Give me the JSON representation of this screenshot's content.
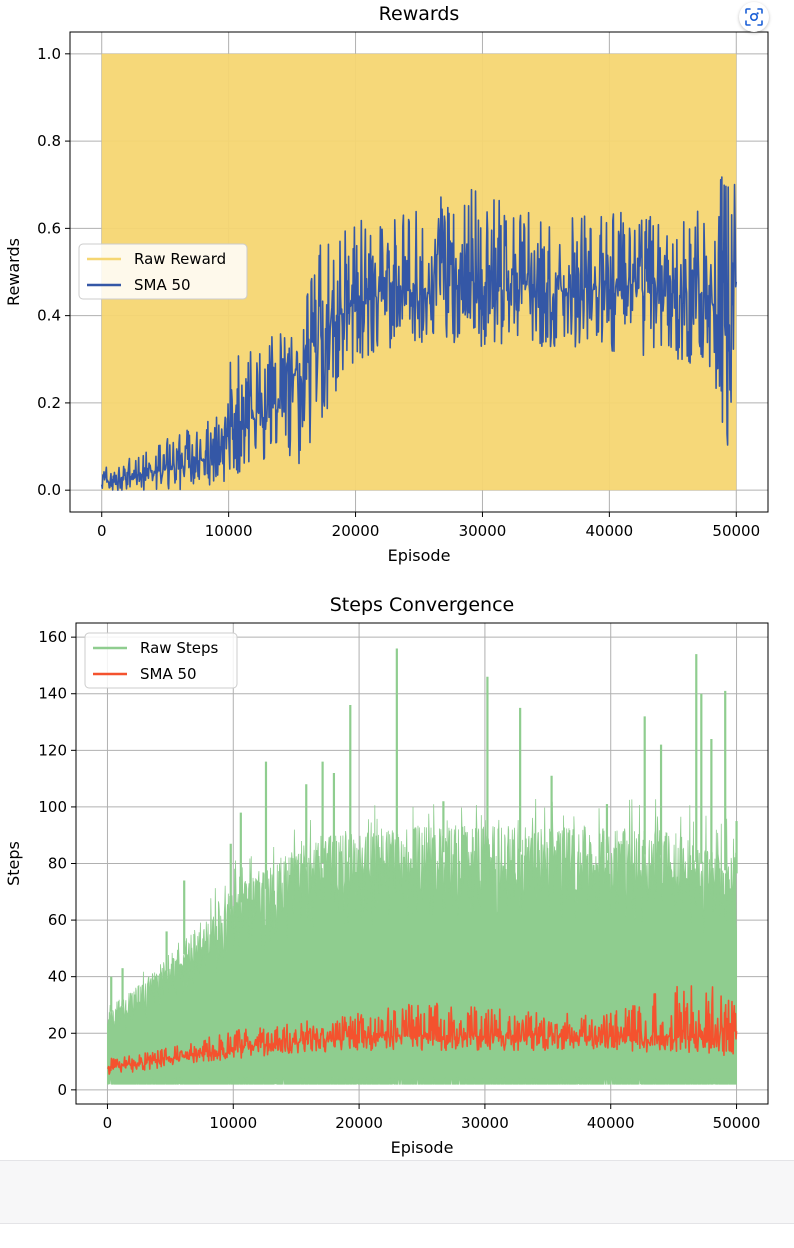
{
  "chart_data": [
    {
      "type": "line",
      "title": "Rewards",
      "xlabel": "Episode",
      "ylabel": "Rewards",
      "xlim": [
        -2500,
        52500
      ],
      "ylim": [
        -0.05,
        1.05
      ],
      "xticks": [
        0,
        10000,
        20000,
        30000,
        40000,
        50000
      ],
      "yticks": [
        0.0,
        0.2,
        0.4,
        0.6,
        0.8,
        1.0
      ],
      "xtick_labels": [
        "0",
        "10000",
        "20000",
        "30000",
        "40000",
        "50000"
      ],
      "ytick_labels": [
        "0.0",
        "0.2",
        "0.4",
        "0.6",
        "0.8",
        "1.0"
      ],
      "grid": true,
      "legend_position": "center-left",
      "series": [
        {
          "name": "Raw Reward",
          "color": "#f5d672",
          "style": "band",
          "x": [
            0,
            50000
          ],
          "y_min": [
            0,
            0
          ],
          "y_max": [
            1,
            1
          ]
        },
        {
          "name": "SMA 50",
          "color": "#3457a6",
          "style": "noisy-line",
          "x": [
            0,
            2000,
            4000,
            6000,
            8000,
            9000,
            10000,
            12000,
            14000,
            16000,
            17000,
            18000,
            19000,
            20000,
            22000,
            25000,
            28000,
            30000,
            35000,
            40000,
            45000,
            48000,
            49500,
            50000
          ],
          "y_min": [
            0.0,
            0.0,
            0.0,
            0.0,
            0.02,
            0.0,
            0.02,
            0.05,
            0.1,
            0.05,
            0.15,
            0.18,
            0.25,
            0.28,
            0.32,
            0.34,
            0.33,
            0.33,
            0.33,
            0.32,
            0.3,
            0.28,
            0.06,
            0.42
          ],
          "y_mean": [
            0.02,
            0.03,
            0.04,
            0.05,
            0.07,
            0.08,
            0.14,
            0.17,
            0.22,
            0.28,
            0.33,
            0.37,
            0.41,
            0.43,
            0.45,
            0.46,
            0.47,
            0.47,
            0.46,
            0.46,
            0.45,
            0.43,
            0.4,
            0.47
          ],
          "y_max": [
            0.06,
            0.07,
            0.1,
            0.13,
            0.15,
            0.17,
            0.3,
            0.32,
            0.37,
            0.42,
            0.55,
            0.6,
            0.6,
            0.62,
            0.62,
            0.64,
            0.7,
            0.68,
            0.62,
            0.64,
            0.62,
            0.66,
            0.76,
            0.7
          ]
        }
      ]
    },
    {
      "type": "line",
      "title": "Steps Convergence",
      "xlabel": "Episode",
      "ylabel": "Steps",
      "xlim": [
        -2500,
        52500
      ],
      "ylim": [
        -5,
        165
      ],
      "xticks": [
        0,
        10000,
        20000,
        30000,
        40000,
        50000
      ],
      "yticks": [
        0,
        20,
        40,
        60,
        80,
        100,
        120,
        140,
        160
      ],
      "xtick_labels": [
        "0",
        "10000",
        "20000",
        "30000",
        "40000",
        "50000"
      ],
      "ytick_labels": [
        "0",
        "20",
        "40",
        "60",
        "80",
        "100",
        "120",
        "140",
        "160"
      ],
      "grid": true,
      "legend_position": "top-left",
      "series": [
        {
          "name": "Raw Steps",
          "color": "#8fcd8f",
          "style": "band-spiky",
          "x": [
            0,
            2000,
            5000,
            8000,
            10000,
            13000,
            16000,
            20000,
            25000,
            30000,
            35000,
            40000,
            45000,
            50000
          ],
          "y_min": [
            2,
            2,
            2,
            2,
            2,
            2,
            2,
            2,
            2,
            2,
            2,
            2,
            2,
            2
          ],
          "y_max": [
            30,
            35,
            48,
            62,
            72,
            80,
            88,
            92,
            93,
            94,
            93,
            93,
            92,
            85
          ],
          "peaks": [
            [
              300,
              40
            ],
            [
              1200,
              43
            ],
            [
              4700,
              56
            ],
            [
              6100,
              74
            ],
            [
              9800,
              87
            ],
            [
              10600,
              98
            ],
            [
              12600,
              116
            ],
            [
              15800,
              108
            ],
            [
              17100,
              116
            ],
            [
              18000,
              112
            ],
            [
              19300,
              136
            ],
            [
              23000,
              156
            ],
            [
              26700,
              102
            ],
            [
              30200,
              146
            ],
            [
              32800,
              135
            ],
            [
              35300,
              111
            ],
            [
              39700,
              101
            ],
            [
              42700,
              132
            ],
            [
              44000,
              122
            ],
            [
              46800,
              154
            ],
            [
              47200,
              140
            ],
            [
              48000,
              124
            ],
            [
              49100,
              141
            ],
            [
              50000,
              95
            ]
          ]
        },
        {
          "name": "SMA 50",
          "color": "#f4522e",
          "style": "noisy-line",
          "x": [
            0,
            3000,
            6000,
            10000,
            15000,
            20000,
            25000,
            30000,
            35000,
            40000,
            45000,
            50000
          ],
          "y_min": [
            5,
            7,
            9,
            11,
            13,
            14,
            14,
            14,
            14,
            14,
            13,
            12
          ],
          "y_mean": [
            8,
            10,
            12,
            15,
            17,
            19,
            19,
            19,
            19,
            19,
            19,
            18
          ],
          "y_max": [
            11,
            13,
            16,
            21,
            24,
            27,
            31,
            29,
            27,
            27,
            37,
            36
          ]
        }
      ]
    }
  ]
}
